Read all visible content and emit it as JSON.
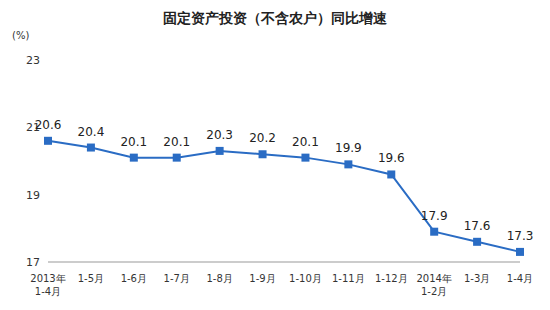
{
  "chart_data": {
    "type": "line",
    "title": "固定资产投资（不含农户）同比增速",
    "y_label": "(%)",
    "categories": [
      "2013年\n1-4月",
      "1-5月",
      "1-6月",
      "1-7月",
      "1-8月",
      "1-9月",
      "1-10月",
      "1-11月",
      "1-12月",
      "2014年\n1-2月",
      "1-3月",
      "1-4月"
    ],
    "values": [
      20.6,
      20.4,
      20.1,
      20.1,
      20.3,
      20.2,
      20.1,
      19.9,
      19.6,
      17.9,
      17.6,
      17.3
    ],
    "color": "#2a6cc4",
    "ylim": [
      17,
      23
    ],
    "yticks": [
      17,
      19,
      21,
      23
    ],
    "grid": false,
    "data_labels": true,
    "marker": "square"
  }
}
